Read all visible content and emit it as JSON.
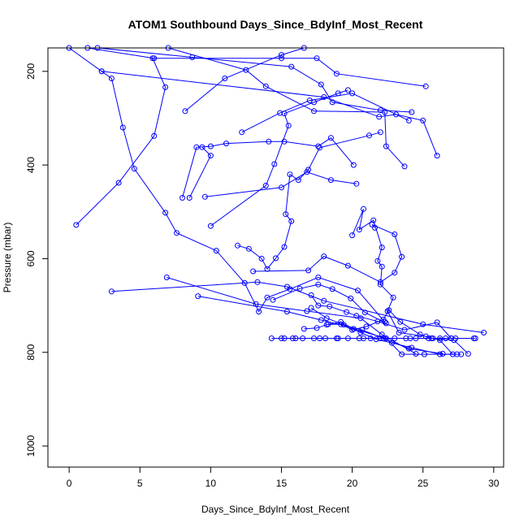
{
  "chart_data": {
    "type": "line",
    "title": "ATOM1 Southbound Days_Since_BdyInf_Most_Recent",
    "xlabel": "Days_Since_BdyInf_Most_Recent",
    "ylabel": "Pressure (mbar)",
    "xlim": [
      -1.5,
      30.7
    ],
    "ylim": [
      1045,
      150
    ],
    "y_reversed": true,
    "x_ticks": [
      0,
      5,
      10,
      15,
      20,
      25,
      30
    ],
    "y_ticks": [
      200,
      400,
      600,
      800,
      1000
    ],
    "grid": false,
    "legend": "none",
    "color": "#0000ff",
    "marker": "open-circle",
    "series": [
      {
        "points": [
          [
            0.0,
            150
          ],
          [
            2.3,
            200
          ],
          [
            3.0,
            215
          ],
          [
            3.8,
            320
          ],
          [
            4.6,
            408
          ],
          [
            6.8,
            502
          ],
          [
            7.6,
            545
          ],
          [
            10.4,
            583
          ],
          [
            12.4,
            652
          ],
          [
            13.4,
            713
          ],
          [
            14.0,
            683
          ],
          [
            15.6,
            665
          ],
          [
            17.6,
            640
          ],
          [
            20.4,
            668
          ],
          [
            22.3,
            735
          ]
        ]
      },
      {
        "points": [
          [
            1.3,
            150
          ],
          [
            6.0,
            172
          ],
          [
            15.0,
            172
          ],
          [
            17.5,
            172
          ],
          [
            18.9,
            205
          ],
          [
            25.2,
            232
          ]
        ]
      },
      {
        "points": [
          [
            2.0,
            150
          ],
          [
            8.7,
            170
          ],
          [
            15.7,
            190
          ],
          [
            17.8,
            228
          ],
          [
            18.6,
            266
          ],
          [
            22.0,
            283
          ],
          [
            24.2,
            287
          ]
        ]
      },
      {
        "points": [
          [
            7.0,
            150
          ],
          [
            12.5,
            197
          ],
          [
            13.9,
            232
          ],
          [
            17.3,
            285
          ],
          [
            22.3,
            287
          ],
          [
            22.4,
            360
          ],
          [
            23.7,
            403
          ]
        ]
      },
      {
        "points": [
          [
            0.5,
            528
          ],
          [
            3.5,
            438
          ],
          [
            6.0,
            338
          ],
          [
            6.8,
            234
          ],
          [
            5.9,
            172
          ]
        ]
      },
      {
        "points": [
          [
            2.3,
            200
          ],
          [
            18.0,
            255
          ],
          [
            21.9,
            297
          ],
          [
            23.1,
            292
          ],
          [
            25.0,
            305
          ],
          [
            26.0,
            380
          ]
        ]
      },
      {
        "points": [
          [
            3.0,
            670
          ],
          [
            13.3,
            650
          ],
          [
            15.4,
            660
          ],
          [
            18.0,
            690
          ],
          [
            25.0,
            740
          ],
          [
            29.3,
            758
          ]
        ]
      },
      {
        "points": [
          [
            8.2,
            285
          ],
          [
            11.0,
            215
          ],
          [
            15.0,
            165
          ],
          [
            16.6,
            150
          ]
        ]
      },
      {
        "points": [
          [
            8.0,
            470
          ],
          [
            9.0,
            362
          ],
          [
            10.0,
            360
          ],
          [
            11.1,
            354
          ],
          [
            14.1,
            350
          ],
          [
            15.2,
            350
          ],
          [
            17.6,
            360
          ],
          [
            18.5,
            342
          ],
          [
            20.1,
            400
          ]
        ]
      },
      {
        "points": [
          [
            9.6,
            468
          ],
          [
            15.0,
            448
          ],
          [
            16.8,
            415
          ],
          [
            18.5,
            432
          ],
          [
            20.3,
            440
          ]
        ]
      },
      {
        "points": [
          [
            8.5,
            470
          ],
          [
            10.0,
            380
          ],
          [
            9.4,
            362
          ]
        ]
      },
      {
        "points": [
          [
            10.0,
            530
          ],
          [
            13.9,
            444
          ],
          [
            14.5,
            398
          ],
          [
            15.5,
            316
          ],
          [
            15.2,
            290
          ],
          [
            17.3,
            266
          ],
          [
            19.0,
            247
          ],
          [
            19.7,
            240
          ]
        ]
      },
      {
        "points": [
          [
            12.2,
            330
          ],
          [
            14.9,
            289
          ],
          [
            17.0,
            262
          ],
          [
            20.0,
            247
          ],
          [
            24.0,
            305
          ]
        ]
      },
      {
        "points": [
          [
            11.9,
            572
          ],
          [
            12.7,
            579
          ],
          [
            13.6,
            600
          ],
          [
            14.0,
            622
          ],
          [
            14.6,
            599
          ],
          [
            15.2,
            575
          ],
          [
            15.7,
            520
          ],
          [
            15.3,
            505
          ],
          [
            15.6,
            420
          ],
          [
            16.2,
            432
          ],
          [
            16.9,
            410
          ],
          [
            17.7,
            363
          ],
          [
            21.2,
            337
          ],
          [
            22.0,
            330
          ]
        ]
      },
      {
        "points": [
          [
            6.9,
            640
          ],
          [
            13.2,
            697
          ],
          [
            16.8,
            712
          ],
          [
            20.6,
            727
          ],
          [
            22.1,
            762
          ],
          [
            24.5,
            803
          ]
        ]
      },
      {
        "points": [
          [
            9.1,
            680
          ],
          [
            15.4,
            713
          ],
          [
            17.8,
            731
          ],
          [
            20.7,
            752
          ],
          [
            24.0,
            792
          ],
          [
            26.4,
            803
          ]
        ]
      },
      {
        "points": [
          [
            13.0,
            627
          ],
          [
            16.9,
            625
          ],
          [
            18.0,
            595
          ],
          [
            19.7,
            615
          ],
          [
            22.0,
            650
          ],
          [
            23.0,
            630
          ],
          [
            23.5,
            596
          ],
          [
            23.0,
            548
          ],
          [
            21.4,
            527
          ],
          [
            21.6,
            534
          ]
        ]
      },
      {
        "points": [
          [
            14.3,
            770
          ],
          [
            15.0,
            770
          ],
          [
            15.8,
            770
          ],
          [
            16.5,
            770
          ],
          [
            17.3,
            770
          ],
          [
            18.1,
            770
          ],
          [
            18.9,
            770
          ],
          [
            19.7,
            770
          ],
          [
            20.5,
            770
          ],
          [
            21.3,
            770
          ],
          [
            22.2,
            770
          ],
          [
            23.0,
            770
          ],
          [
            23.8,
            770
          ],
          [
            24.5,
            770
          ],
          [
            25.4,
            770
          ],
          [
            26.2,
            770
          ],
          [
            27.0,
            770
          ],
          [
            28.6,
            770
          ]
        ]
      },
      {
        "points": [
          [
            15.2,
            770
          ],
          [
            16.0,
            770
          ],
          [
            17.7,
            770
          ],
          [
            19.0,
            770
          ],
          [
            20.8,
            770
          ],
          [
            22.0,
            770
          ],
          [
            24.1,
            770
          ],
          [
            25.7,
            770
          ],
          [
            26.6,
            770
          ],
          [
            27.3,
            770
          ],
          [
            28.7,
            770
          ]
        ]
      },
      {
        "points": [
          [
            16.6,
            750
          ],
          [
            17.5,
            748
          ],
          [
            18.3,
            740
          ],
          [
            19.2,
            740
          ],
          [
            20.0,
            752
          ],
          [
            21.0,
            745
          ],
          [
            22.2,
            730
          ],
          [
            22.6,
            710
          ],
          [
            23.4,
            735
          ],
          [
            24.8,
            762
          ],
          [
            25.6,
            770
          ],
          [
            27.2,
            774
          ],
          [
            28.2,
            803
          ]
        ]
      },
      {
        "points": [
          [
            20.0,
            550
          ],
          [
            20.8,
            494
          ],
          [
            20.5,
            538
          ],
          [
            21.5,
            518
          ],
          [
            22.1,
            576
          ],
          [
            21.8,
            605
          ],
          [
            22.1,
            617
          ],
          [
            22.0,
            655
          ],
          [
            22.9,
            683
          ],
          [
            22.5,
            712
          ],
          [
            23.3,
            758
          ],
          [
            25.2,
            766
          ],
          [
            26.2,
            774
          ],
          [
            27.1,
            804
          ]
        ]
      },
      {
        "points": [
          [
            17.1,
            678
          ],
          [
            17.6,
            700
          ],
          [
            18.4,
            702
          ],
          [
            19.6,
            714
          ],
          [
            20.3,
            722
          ],
          [
            21.8,
            734
          ],
          [
            23.7,
            752
          ],
          [
            26.0,
            736
          ],
          [
            27.0,
            770
          ]
        ]
      },
      {
        "points": [
          [
            17.1,
            705
          ],
          [
            18.2,
            727
          ],
          [
            19.4,
            741
          ],
          [
            20.6,
            758
          ],
          [
            21.7,
            772
          ],
          [
            22.8,
            780
          ],
          [
            24.2,
            790
          ],
          [
            26.2,
            804
          ],
          [
            27.4,
            804
          ]
        ]
      },
      {
        "points": [
          [
            14.4,
            688
          ],
          [
            16.3,
            664
          ],
          [
            17.6,
            655
          ],
          [
            18.6,
            665
          ],
          [
            19.9,
            685
          ],
          [
            20.9,
            715
          ],
          [
            22.4,
            738
          ]
        ]
      },
      {
        "points": [
          [
            18.2,
            741
          ],
          [
            19.2,
            735
          ],
          [
            20.1,
            750
          ],
          [
            22.4,
            770
          ],
          [
            23.5,
            804
          ],
          [
            25.1,
            804
          ],
          [
            27.7,
            804
          ]
        ]
      }
    ]
  }
}
